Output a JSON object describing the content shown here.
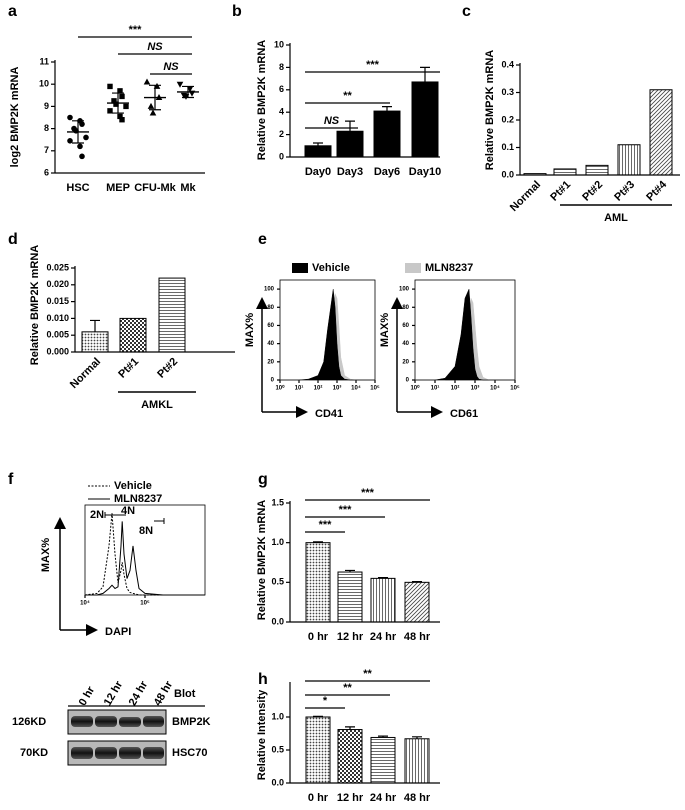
{
  "chart_data": [
    {
      "panel": "a",
      "type": "dot",
      "ylabel": "log2 BMP2K mRNA",
      "categories": [
        "HSC",
        "MEP",
        "CFU-Mk",
        "Mk"
      ],
      "points": [
        [
          8.5,
          8.35,
          8.2,
          8.0,
          7.9,
          7.6,
          7.45,
          7.2,
          6.75
        ],
        [
          9.9,
          9.7,
          9.45,
          9.25,
          9.1,
          9.0,
          8.8,
          8.55,
          8.4
        ],
        [
          10.1,
          9.9,
          9.4,
          9.0,
          8.7
        ],
        [
          10.0,
          9.8,
          9.6,
          9.5,
          9.45
        ]
      ],
      "values": [
        7.85,
        9.15,
        9.4,
        9.65
      ],
      "errors": [
        0.5,
        0.45,
        0.55,
        0.25
      ],
      "markers": [
        "circle",
        "square",
        "triangle",
        "triangle-down"
      ],
      "color": "#000000",
      "ylim": [
        6,
        11
      ],
      "yticks": [
        6,
        7,
        8,
        9,
        10,
        11
      ],
      "annotations": [
        "***",
        "NS",
        "NS"
      ]
    },
    {
      "panel": "b",
      "type": "bar",
      "ylabel": "Relative BMP2K mRNA",
      "categories": [
        "Day0",
        "Day3",
        "Day6",
        "Day10"
      ],
      "values": [
        1.0,
        2.3,
        4.1,
        6.7
      ],
      "errors": [
        0.25,
        0.9,
        0.4,
        1.3
      ],
      "color": "#000000",
      "ylim": [
        0,
        10
      ],
      "yticks": [
        0,
        2,
        4,
        6,
        8,
        10
      ],
      "annotations": [
        "***",
        "**",
        "NS"
      ]
    },
    {
      "panel": "c",
      "type": "bar",
      "ylabel": "Relative BMP2K mRNA",
      "categories": [
        "Normal",
        "Pt#1",
        "Pt#2",
        "Pt#3",
        "Pt#4"
      ],
      "values": [
        0.005,
        0.022,
        0.035,
        0.11,
        0.31
      ],
      "patterns": [
        "dots",
        "horiz",
        "horiz",
        "vert",
        "diag"
      ],
      "ylim": [
        0,
        0.4
      ],
      "yticks": [
        {
          "value": 0,
          "label": "0.0"
        },
        0.1,
        0.2,
        0.3,
        0.4
      ],
      "group_label": "AML"
    },
    {
      "panel": "d",
      "type": "bar",
      "ylabel": "Relative BMP2K mRNA",
      "categories": [
        "Normal",
        "Pt#1",
        "Pt#2"
      ],
      "values": [
        0.006,
        0.01,
        0.022
      ],
      "errors": [
        0.0034,
        null,
        null
      ],
      "patterns": [
        "dots",
        "check",
        "horiz"
      ],
      "ylim": [
        0,
        0.025
      ],
      "yticks": [
        {
          "value": 0,
          "label": "0.000"
        },
        0.005,
        {
          "value": 0.01,
          "label": "0.010"
        },
        0.015,
        {
          "value": 0.02,
          "label": "0.020"
        },
        0.025
      ],
      "group_label": "AMKL"
    },
    {
      "panel": "e",
      "type": "flow",
      "ylabel": "MAX%",
      "xlabel": "CD41",
      "fill": true,
      "x": [
        0,
        1,
        1.5,
        2,
        2.3,
        2.5,
        2.7,
        2.8,
        2.9,
        3.0,
        3.1,
        3.2,
        3.4,
        3.7,
        4,
        5
      ],
      "series": [
        {
          "name": "Vehicle",
          "color": "#000000",
          "values": [
            0,
            0,
            1,
            5,
            20,
            55,
            85,
            100,
            80,
            40,
            15,
            5,
            1,
            0,
            0,
            0
          ]
        },
        {
          "name": "MLN8237",
          "color": "#c8c8c8",
          "values": [
            0,
            0,
            0,
            2,
            8,
            25,
            55,
            80,
            95,
            90,
            60,
            25,
            5,
            1,
            0,
            0
          ]
        }
      ],
      "xlim": [
        0,
        5
      ],
      "xticks": [
        {
          "value": 0,
          "label": "10⁰"
        },
        {
          "value": 1,
          "label": "10¹"
        },
        {
          "value": 2,
          "label": "10²"
        },
        {
          "value": 3,
          "label": "10³"
        },
        {
          "value": 4,
          "label": "10⁴"
        },
        {
          "value": 5,
          "label": "10⁵"
        }
      ],
      "ylim": [
        0,
        110
      ],
      "yticks": [
        0,
        20,
        40,
        60,
        80,
        100
      ]
    },
    {
      "type": "flow",
      "ylabel": "MAX%",
      "xlabel": "CD61",
      "fill": true,
      "x": [
        0,
        1,
        1.5,
        2,
        2.3,
        2.5,
        2.7,
        2.8,
        2.9,
        3.0,
        3.1,
        3.2,
        3.4,
        3.7,
        4,
        5
      ],
      "series": [
        {
          "color": "#000000",
          "values": [
            0,
            0,
            2,
            15,
            50,
            90,
            100,
            70,
            35,
            12,
            4,
            1,
            0,
            0,
            0,
            0
          ]
        },
        {
          "color": "#c8c8c8",
          "values": [
            0,
            0,
            0,
            5,
            20,
            45,
            70,
            90,
            85,
            60,
            35,
            15,
            3,
            0,
            0,
            0
          ]
        }
      ],
      "xlim": [
        0,
        5
      ],
      "xticks": [
        {
          "value": 0,
          "label": "10⁰"
        },
        {
          "value": 1,
          "label": "10¹"
        },
        {
          "value": 2,
          "label": "10²"
        },
        {
          "value": 3,
          "label": "10³"
        },
        {
          "value": 4,
          "label": "10⁴"
        },
        {
          "value": 5,
          "label": "10⁵"
        }
      ],
      "ylim": [
        0,
        110
      ],
      "yticks": [
        0,
        20,
        40,
        60,
        80,
        100
      ]
    },
    {
      "panel": "f",
      "type": "flow",
      "ylabel": "MAX%",
      "xlabel": "DAPI",
      "fill": false,
      "x": [
        4.0,
        4.2,
        4.3,
        4.4,
        4.45,
        4.5,
        4.55,
        4.6,
        4.62,
        4.65,
        4.7,
        4.75,
        4.8,
        4.85,
        4.9,
        5.0,
        5.3,
        6.0
      ],
      "series": [
        {
          "name": "Vehicle",
          "color": "#000000",
          "dash": true,
          "values": [
            0,
            2,
            10,
            60,
            100,
            50,
            15,
            30,
            40,
            25,
            8,
            3,
            2,
            1,
            0,
            0,
            0,
            0
          ]
        },
        {
          "name": "MLN8237",
          "color": "#000000",
          "dash": false,
          "values": [
            0,
            0,
            2,
            8,
            12,
            8,
            10,
            60,
            90,
            50,
            20,
            30,
            60,
            30,
            8,
            2,
            0,
            0
          ]
        }
      ],
      "xlim": [
        4,
        6
      ],
      "xticks": [
        {
          "value": 4,
          "label": "10⁴"
        },
        {
          "value": 5,
          "label": "10⁵"
        }
      ],
      "ylim": [
        0,
        110
      ],
      "annotations": [
        "2N",
        "4N",
        "8N"
      ]
    },
    {
      "panel": "g",
      "type": "bar",
      "ylabel": "Relative BMP2K mRNA",
      "categories": [
        "0 hr",
        "12 hr",
        "24 hr",
        "48 hr"
      ],
      "values": [
        1.0,
        0.63,
        0.55,
        0.5
      ],
      "errors": [
        0.01,
        0.02,
        0.01,
        0.01
      ],
      "patterns": [
        "dots",
        "horiz",
        "vert",
        "diag"
      ],
      "ylim": [
        0,
        1.5
      ],
      "yticks": [
        {
          "value": 0,
          "label": "0.0"
        },
        0.5,
        {
          "value": 1,
          "label": "1.0"
        },
        1.5
      ],
      "annotations": [
        "***",
        "***",
        "***"
      ]
    },
    {
      "panel": "h",
      "type": "bar",
      "ylabel": "Relative Intensity",
      "categories": [
        "0 hr",
        "12 hr",
        "24 hr",
        "48 hr"
      ],
      "values": [
        1.0,
        0.81,
        0.69,
        0.67
      ],
      "errors": [
        0.01,
        0.04,
        0.02,
        0.03
      ],
      "patterns": [
        "dots",
        "check",
        "horiz",
        "vert"
      ],
      "ylim": [
        0,
        1.5
      ],
      "yticks": [
        {
          "value": 0,
          "label": "0.0"
        },
        0.5,
        {
          "value": 1,
          "label": "1.0"
        }
      ],
      "annotations": [
        "**",
        "**",
        "*"
      ]
    }
  ],
  "blot": {
    "lanes": [
      "0 hr",
      "12 hr",
      "24 hr",
      "48 hr"
    ],
    "header": "Blot",
    "rows": [
      {
        "marker": "126KD",
        "protein": "BMP2K"
      },
      {
        "marker": "70KD",
        "protein": "HSC70"
      }
    ]
  }
}
